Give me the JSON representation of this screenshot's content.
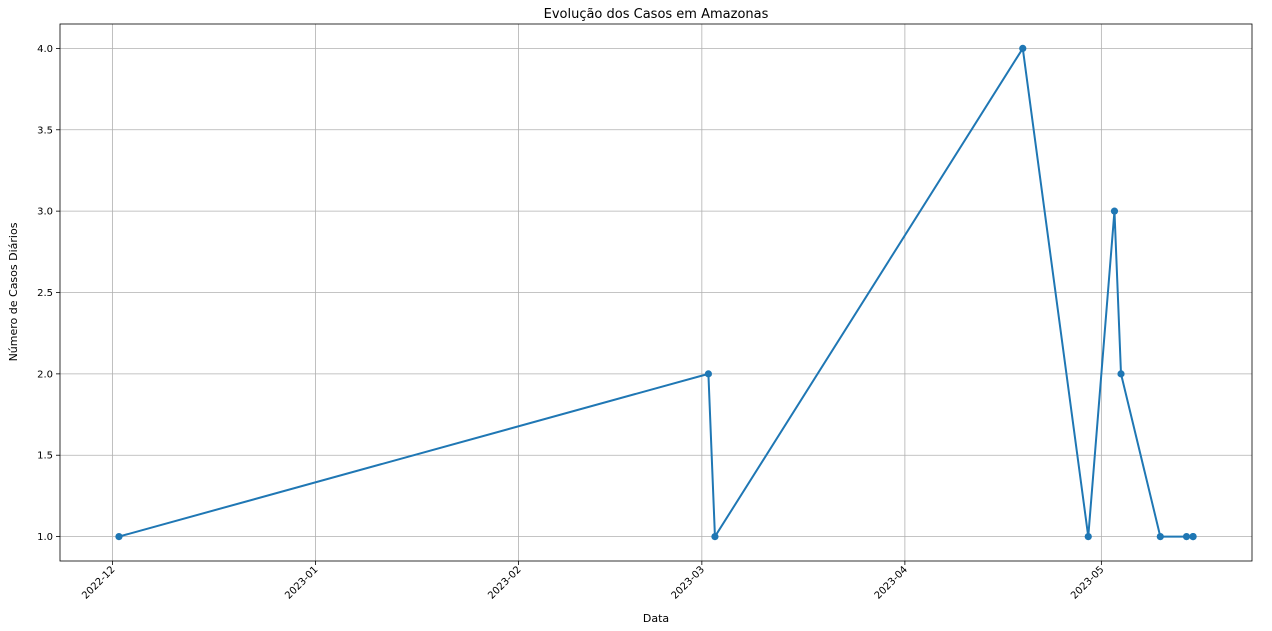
{
  "chart_data": {
    "type": "line",
    "title": "Evolução dos Casos em Amazonas",
    "xlabel": "Data",
    "ylabel": "Número de Casos Diários",
    "x_type": "date",
    "xlim": [
      "2022-11-23",
      "2023-05-24"
    ],
    "ylim": [
      0.85,
      4.15
    ],
    "x_ticks": [
      "2022-12-01",
      "2023-01-01",
      "2023-02-01",
      "2023-03-01",
      "2023-04-01",
      "2023-05-01"
    ],
    "x_tick_labels": [
      "2022-12",
      "2023-01",
      "2023-02",
      "2023-03",
      "2023-04",
      "2023-05"
    ],
    "y_ticks": [
      1.0,
      1.5,
      2.0,
      2.5,
      3.0,
      3.5,
      4.0
    ],
    "y_tick_labels": [
      "1.0",
      "1.5",
      "2.0",
      "2.5",
      "3.0",
      "3.5",
      "4.0"
    ],
    "grid": true,
    "color": "#1f77b4",
    "series": [
      {
        "x": [
          "2022-12-02",
          "2023-03-02",
          "2023-03-03",
          "2023-04-19",
          "2023-04-29",
          "2023-05-03",
          "2023-05-04",
          "2023-05-10",
          "2023-05-14",
          "2023-05-15",
          "2023-05-15"
        ],
        "y": [
          1,
          2,
          1,
          4,
          1,
          3,
          2,
          1,
          1,
          1,
          1
        ]
      }
    ]
  }
}
